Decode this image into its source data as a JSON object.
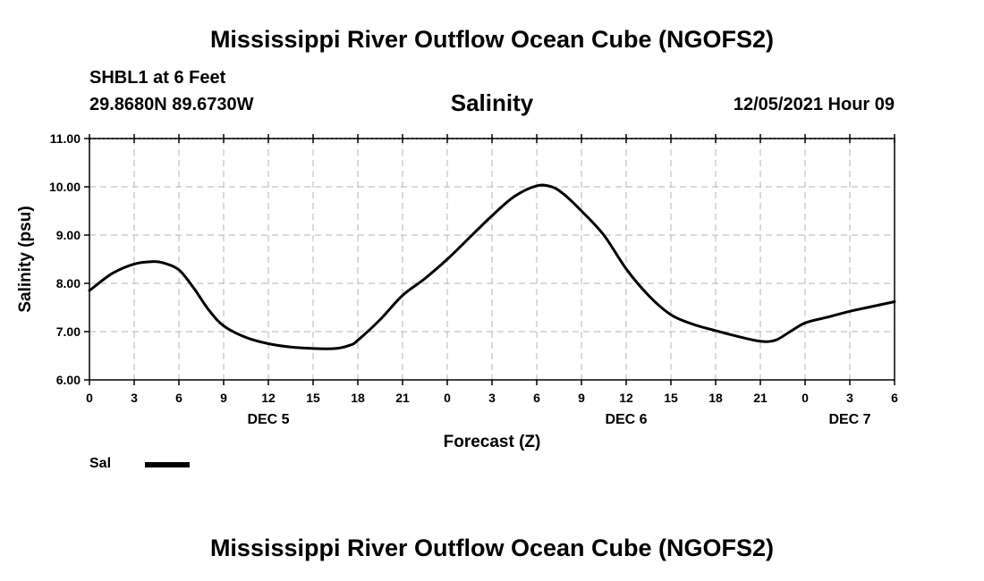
{
  "header": {
    "title": "Mississippi River Outflow Ocean Cube (NGOFS2)",
    "station": "SHBL1 at 6 Feet",
    "coordinates": "29.8680N  89.6730W",
    "variable": "Salinity",
    "datetime": "12/05/2021 Hour 09"
  },
  "footer": {
    "title": "Mississippi River Outflow Ocean Cube (NGOFS2)"
  },
  "legend": {
    "label": "Sal"
  },
  "chart_data": {
    "type": "line",
    "title": "Salinity",
    "xlabel": "Forecast (Z)",
    "ylabel": "Salinity (psu)",
    "ylim": [
      6.0,
      11.0
    ],
    "yticks": [
      "6.00",
      "7.00",
      "8.00",
      "9.00",
      "10.00",
      "11.00"
    ],
    "xlim": [
      0,
      54
    ],
    "xticks": [
      "0",
      "3",
      "6",
      "9",
      "12",
      "15",
      "18",
      "21",
      "0",
      "3",
      "6",
      "9",
      "12",
      "15",
      "18",
      "21",
      "0",
      "3",
      "6"
    ],
    "date_labels": [
      {
        "label": "DEC 5",
        "hour": 12
      },
      {
        "label": "DEC 6",
        "hour": 36
      },
      {
        "label": "DEC 7",
        "hour": 51
      }
    ],
    "grid": true,
    "series": [
      {
        "name": "Sal",
        "color": "#000000",
        "x": [
          0,
          1.5,
          3,
          4.2,
          5,
          6,
          7,
          8,
          9,
          10.5,
          12,
          13.5,
          15,
          16.5,
          17.5,
          18,
          19.5,
          21,
          22.5,
          24,
          25.5,
          27,
          28.5,
          30,
          31,
          31.8,
          33,
          34.5,
          36,
          37.5,
          39,
          40.5,
          42,
          43.5,
          45,
          46,
          47,
          48,
          49.5,
          51,
          52.5,
          54
        ],
        "values": [
          7.85,
          8.2,
          8.4,
          8.45,
          8.42,
          8.28,
          7.9,
          7.45,
          7.12,
          6.88,
          6.75,
          6.68,
          6.65,
          6.65,
          6.72,
          6.82,
          7.25,
          7.75,
          8.1,
          8.5,
          8.95,
          9.4,
          9.8,
          10.02,
          10.0,
          9.85,
          9.5,
          9.0,
          8.3,
          7.75,
          7.35,
          7.15,
          7.02,
          6.9,
          6.8,
          6.82,
          7.0,
          7.18,
          7.3,
          7.42,
          7.52,
          7.62
        ]
      }
    ]
  }
}
